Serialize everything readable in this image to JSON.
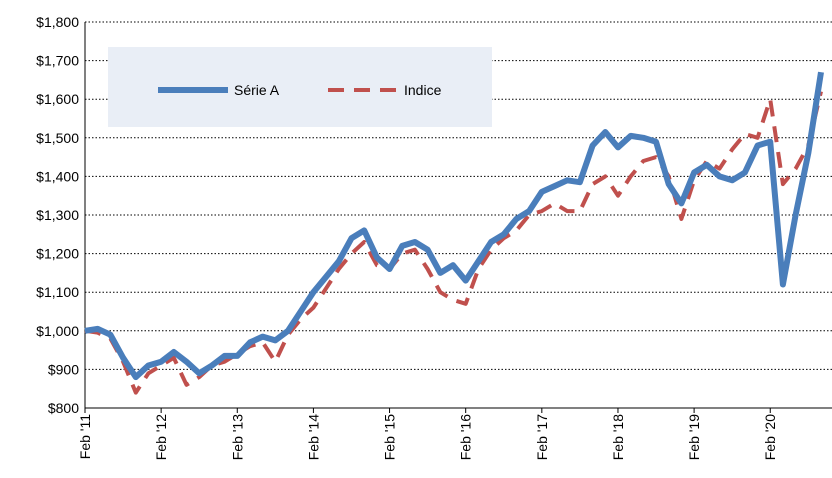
{
  "chart_data": {
    "type": "line",
    "categories": [
      "Feb '11",
      null,
      null,
      null,
      null,
      null,
      "Feb '12",
      null,
      null,
      null,
      null,
      null,
      "Feb '13",
      null,
      null,
      null,
      null,
      null,
      "Feb '14",
      null,
      null,
      null,
      null,
      null,
      "Feb '15",
      null,
      null,
      null,
      null,
      null,
      "Feb '16",
      null,
      null,
      null,
      null,
      null,
      "Feb '17",
      null,
      null,
      null,
      null,
      null,
      "Feb '18",
      null,
      null,
      null,
      null,
      null,
      "Feb '19",
      null,
      null,
      null,
      null,
      null,
      "Feb '20",
      null,
      null,
      null,
      null
    ],
    "series": [
      {
        "name": "Série A",
        "color": "#4a7ebb",
        "values": [
          1000,
          1005,
          990,
          930,
          880,
          910,
          920,
          945,
          920,
          890,
          910,
          935,
          935,
          970,
          985,
          975,
          1000,
          1050,
          1100,
          1140,
          1180,
          1240,
          1260,
          1190,
          1160,
          1220,
          1230,
          1210,
          1150,
          1170,
          1130,
          1180,
          1230,
          1250,
          1290,
          1310,
          1360,
          1375,
          1390,
          1385,
          1480,
          1515,
          1475,
          1505,
          1500,
          1490,
          1380,
          1330,
          1410,
          1430,
          1400,
          1390,
          1410,
          1480,
          1490,
          1120,
          1300,
          1460,
          1670
        ]
      },
      {
        "name": "Indice",
        "color": "#c0504d",
        "values": [
          1000,
          995,
          980,
          920,
          840,
          890,
          910,
          930,
          860,
          880,
          910,
          920,
          940,
          960,
          970,
          920,
          990,
          1030,
          1060,
          1110,
          1160,
          1200,
          1230,
          1170,
          1160,
          1200,
          1210,
          1160,
          1100,
          1080,
          1070,
          1160,
          1210,
          1240,
          1260,
          1300,
          1310,
          1330,
          1310,
          1310,
          1380,
          1400,
          1350,
          1400,
          1440,
          1450,
          1400,
          1290,
          1390,
          1440,
          1420,
          1470,
          1510,
          1500,
          1600,
          1380,
          1420,
          1480,
          1620
        ]
      }
    ],
    "ylim": [
      800,
      1800
    ],
    "yticks": [
      {
        "value": 800,
        "label": "$800"
      },
      {
        "value": 900,
        "label": "$900"
      },
      {
        "value": 1000,
        "label": "$1,000"
      },
      {
        "value": 1100,
        "label": "$1,100"
      },
      {
        "value": 1200,
        "label": "$1,200"
      },
      {
        "value": 1300,
        "label": "$1,300"
      },
      {
        "value": 1400,
        "label": "$1,400"
      },
      {
        "value": 1500,
        "label": "$1,500"
      },
      {
        "value": 1600,
        "label": "$1,600"
      },
      {
        "value": 1700,
        "label": "$1,700"
      },
      {
        "value": 1800,
        "label": "$1,800"
      }
    ],
    "grid": true
  }
}
